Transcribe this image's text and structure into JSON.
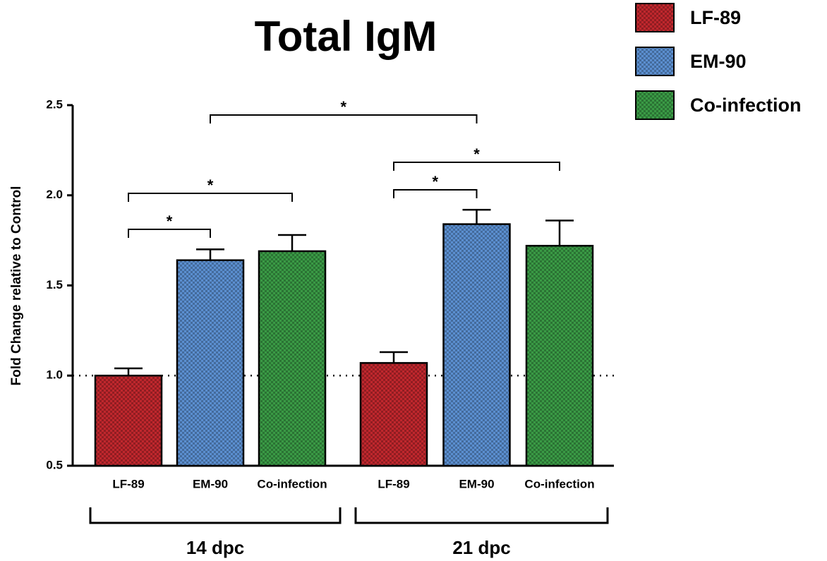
{
  "chart_data": {
    "type": "bar",
    "title": "Total IgM",
    "ylabel": "Fold Change relative to Control",
    "groups": [
      "14 dpc",
      "21 dpc"
    ],
    "series": [
      {
        "name": "LF-89",
        "color": "#c0272d",
        "values": [
          1.0,
          1.07
        ],
        "errors": [
          0.04,
          0.06
        ]
      },
      {
        "name": "EM-90",
        "color": "#5b8fd0",
        "values": [
          1.64,
          1.84
        ],
        "errors": [
          0.06,
          0.08
        ]
      },
      {
        "name": "Co-infection",
        "color": "#3a9a45",
        "values": [
          1.69,
          1.72
        ],
        "errors": [
          0.09,
          0.14
        ]
      }
    ],
    "ylim": [
      0.5,
      2.5
    ],
    "yticks": [
      0.5,
      {
        "value": 1.0,
        "label": "1.0"
      },
      1.5,
      {
        "value": 2.0,
        "label": "2.0"
      },
      2.5
    ],
    "reference_line": 1,
    "annotations": [
      {
        "text": "*",
        "from": [
          0,
          0
        ],
        "to": [
          0,
          1
        ]
      },
      {
        "text": "*",
        "from": [
          0,
          0
        ],
        "to": [
          0,
          2
        ]
      },
      {
        "text": "*",
        "from": [
          0,
          1
        ],
        "to": [
          1,
          1
        ]
      },
      {
        "text": "*",
        "from": [
          1,
          0
        ],
        "to": [
          1,
          1
        ]
      },
      {
        "text": "*",
        "from": [
          1,
          0
        ],
        "to": [
          1,
          2
        ]
      }
    ],
    "legend": "top-right"
  }
}
